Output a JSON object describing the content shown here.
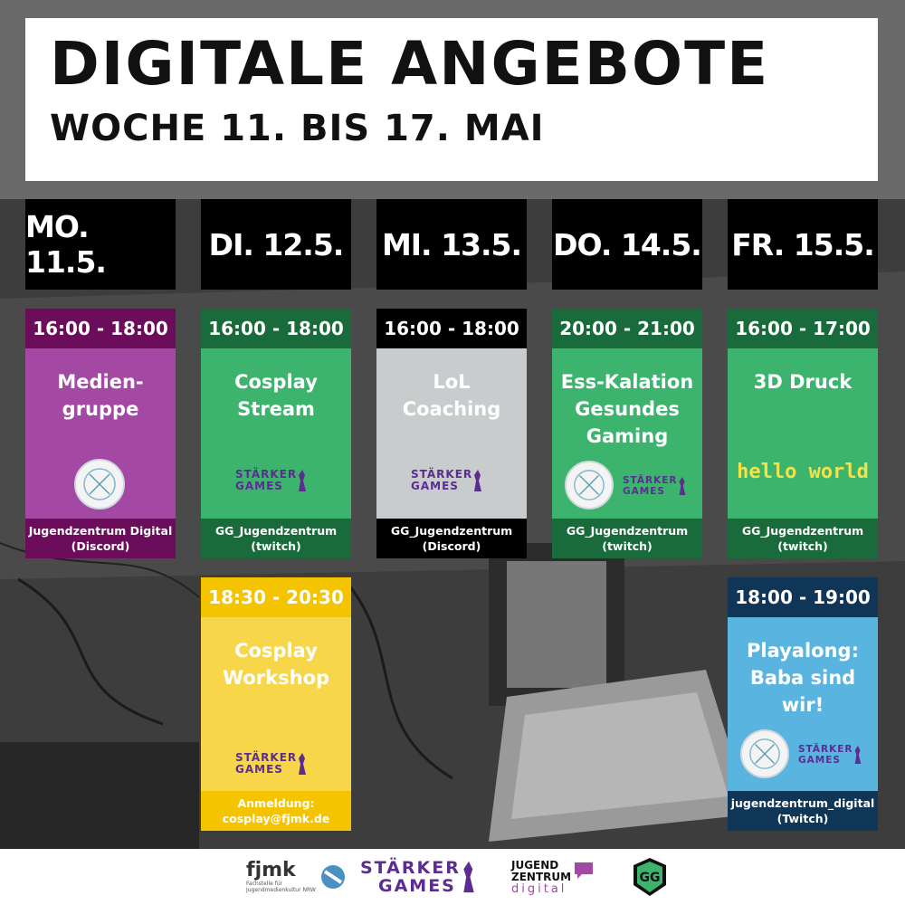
{
  "header": {
    "title": "DIGITALE ANGEBOTE",
    "subtitle": "WOCHE 11. BIS 17. MAI"
  },
  "days": [
    {
      "label": "MO. 11.5."
    },
    {
      "label": "DI. 12.5."
    },
    {
      "label": "MI. 13.5."
    },
    {
      "label": "DO. 14.5."
    },
    {
      "label": "FR. 15.5."
    }
  ],
  "events": [
    {
      "time": "16:00 - 18:00",
      "title_line1": "Medien-",
      "title_line2": "gruppe",
      "title_line3": "",
      "footer_line1": "Jugendzentrum Digital",
      "footer_line2": "(Discord)",
      "colors": {
        "header": "#6b0d5b",
        "body": "#a349a4",
        "footer": "#6b0d5b"
      }
    },
    {
      "time": "16:00 - 18:00",
      "title_line1": "Cosplay",
      "title_line2": "Stream",
      "title_line3": "",
      "footer_line1": "GG_Jugendzentrum",
      "footer_line2": "(twitch)",
      "colors": {
        "header": "#1a6b3c",
        "body": "#3cb46e",
        "footer": "#1a6b3c"
      }
    },
    {
      "time": "16:00 - 18:00",
      "title_line1": "LoL",
      "title_line2": "Coaching",
      "title_line3": "",
      "footer_line1": "GG_Jugendzentrum",
      "footer_line2": "(Discord)",
      "colors": {
        "header": "#000000",
        "body": "#c8cccc",
        "footer": "#000000"
      }
    },
    {
      "time": "20:00 - 21:00",
      "title_line1": "Ess-Kalation",
      "title_line2": "Gesundes",
      "title_line3": "Gaming",
      "footer_line1": "GG_Jugendzentrum",
      "footer_line2": "(twitch)",
      "colors": {
        "header": "#1a6b3c",
        "body": "#3cb46e",
        "footer": "#1a6b3c"
      }
    },
    {
      "time": "16:00 - 17:00",
      "title_line1": "3D Druck",
      "title_line2": "",
      "title_line3": "",
      "footer_line1": "GG_Jugendzentrum",
      "footer_line2": "(twitch)",
      "colors": {
        "header": "#1a6b3c",
        "body": "#3cb46e",
        "footer": "#1a6b3c"
      }
    },
    {
      "time": "18:30 - 20:30",
      "title_line1": "Cosplay",
      "title_line2": "Workshop",
      "title_line3": "",
      "footer_line1": "Anmeldung:",
      "footer_line2": "cosplay@fjmk.de",
      "colors": {
        "header": "#f5c400",
        "body": "#f7d64a",
        "footer": "#f5c400"
      }
    },
    {
      "time": "18:00 - 19:00",
      "title_line1": "Playalong:",
      "title_line2": "Baba sind",
      "title_line3": "wir!",
      "footer_line1": "jugendzentrum_digital",
      "footer_line2": "(Twitch)",
      "colors": {
        "header": "#0f3557",
        "body": "#5ab4e0",
        "footer": "#0f3557"
      }
    }
  ],
  "logos": {
    "starker_line1": "STÄRKER",
    "starker_line2": "GAMES",
    "hello_world": "hello world",
    "fjmk": "fjmk",
    "fjmk_sub1": "Fachstelle für",
    "fjmk_sub2": "Jugendmedienkultur NRW",
    "jz_line1": "JUGEND",
    "jz_line2": "ZENTRUM",
    "jz_line3": "digital",
    "gg_badge": "GG"
  }
}
